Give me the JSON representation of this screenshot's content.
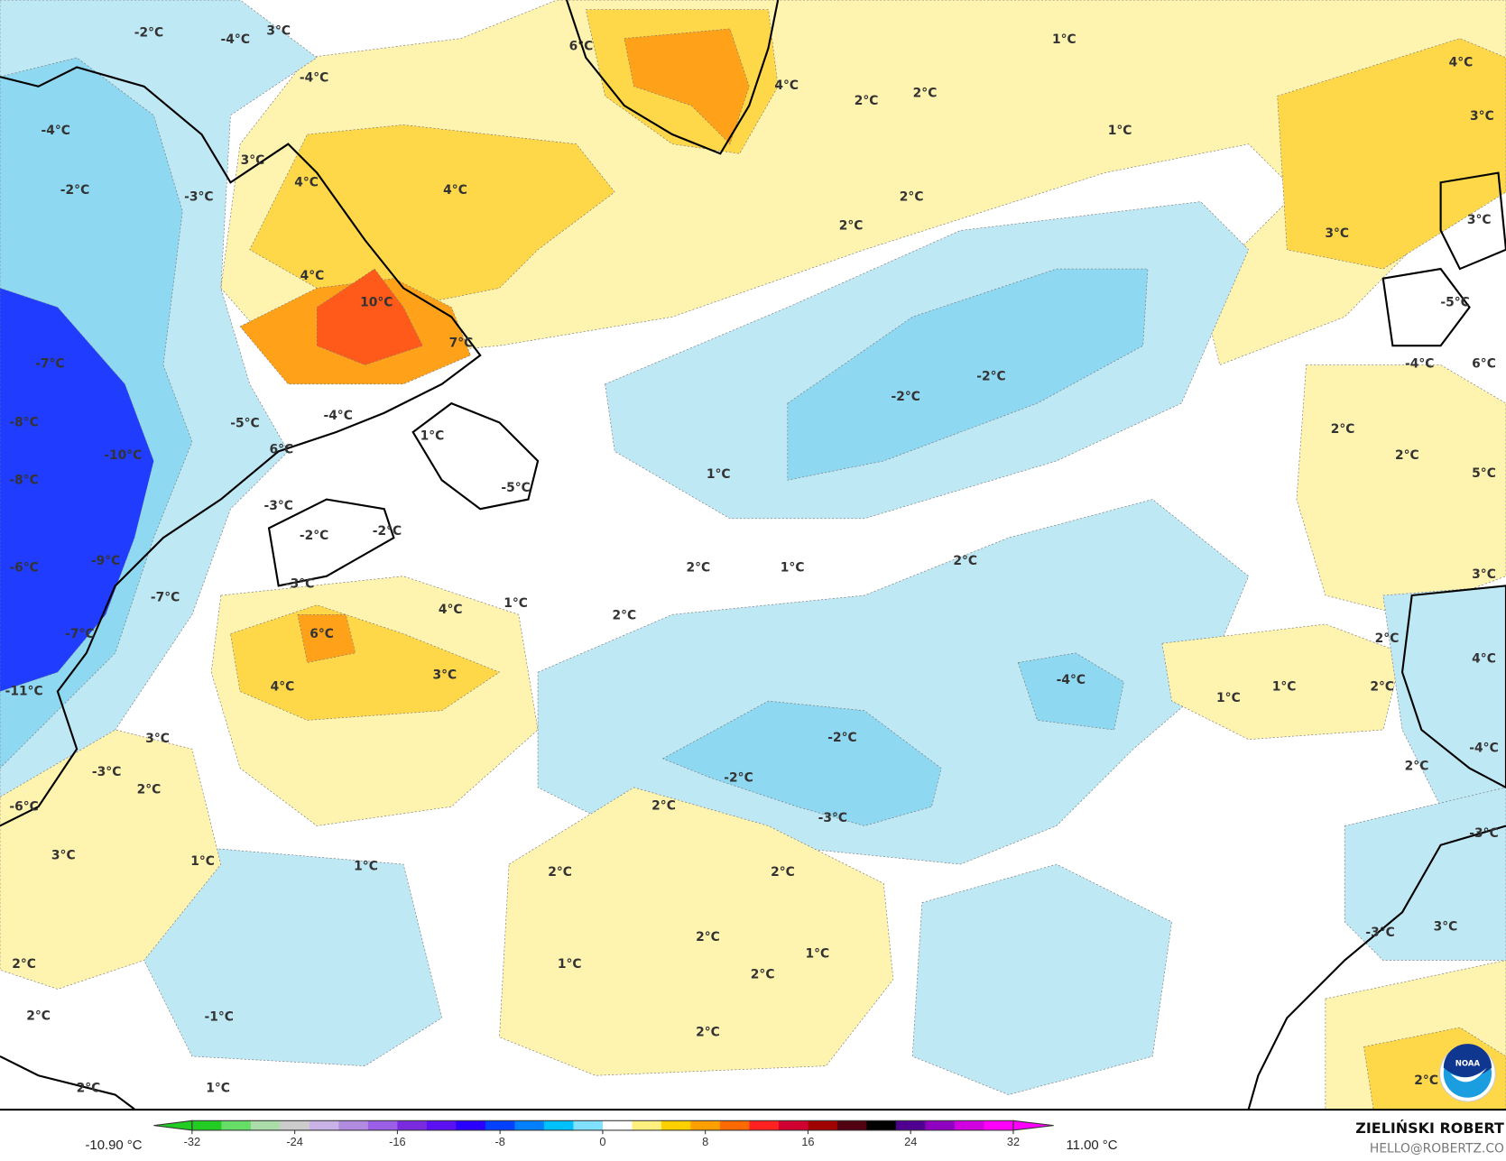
{
  "map": {
    "colors": {
      "light_blue": "#bfe8f5",
      "blue": "#8fd8f2",
      "deep_blue": "#1f3cff",
      "pale_yellow": "#fff3b0",
      "yellow": "#ffd84a",
      "orange": "#ffa21a",
      "red": "#ff5a1a",
      "land_line": "#000000"
    },
    "labels": [
      "-2°C",
      "-4°C",
      "3°C",
      "-4°C",
      "-4°C",
      "-2°C",
      "-3°C",
      "3°C",
      "4°C",
      "-7°C",
      "-8°C",
      "-10°C",
      "-8°C",
      "-6°C",
      "-9°C",
      "-7°C",
      "-7°C",
      "-11°C",
      "-5°C",
      "-4°C",
      "6°C",
      "-3°C",
      "-2°C",
      "-2°C",
      "-3°C",
      "1°C",
      "-5°C",
      "4°C",
      "4°C",
      "10°C",
      "7°C",
      "6°C",
      "4°C",
      "4°C",
      "3°C",
      "1°C",
      "3°C",
      "-3°C",
      "2°C",
      "-6°C",
      "3°C",
      "1°C",
      "1°C",
      "2°C",
      "-1°C",
      "2°C",
      "2°C",
      "1°C",
      "6°C",
      "4°C",
      "2°C",
      "2°C",
      "1°C",
      "2°C",
      "2°C",
      "1°C",
      "-2°C",
      "-2°C",
      "1°C",
      "2°C",
      "1°C",
      "2°C",
      "-2°C",
      "-2°C",
      "-3°C",
      "-4°C",
      "2°C",
      "2°C",
      "2°C",
      "1°C",
      "2°C",
      "2°C",
      "2°C",
      "1°C",
      "3°C",
      "4°C",
      "3°C",
      "3°C",
      "-5°C",
      "6°C",
      "-4°C",
      "2°C",
      "2°C",
      "5°C",
      "3°C",
      "2°C",
      "2°C",
      "1°C",
      "1°C",
      "2°C",
      "2°C",
      "4°C",
      "-4°C",
      "-3°C",
      "-3°C",
      "3°C",
      "2°C"
    ],
    "logo_text": "NOAA"
  },
  "colorbar": {
    "min_label": "-10.90 °C",
    "max_label": "11.00 °C",
    "ticks": [
      "-32",
      "-24",
      "-16",
      "-8",
      "0",
      "8",
      "16",
      "24",
      "32"
    ],
    "stops": [
      "#22cc22",
      "#66dd66",
      "#aaddaa",
      "#cccccc",
      "#c9b3e6",
      "#b08be0",
      "#9a5fe6",
      "#7a2be0",
      "#5a10f0",
      "#2a00ff",
      "#0040ff",
      "#0080ff",
      "#00c0ff",
      "#80e0ff",
      "#ffffff",
      "#fff080",
      "#ffd000",
      "#ffa000",
      "#ff6a00",
      "#ff2020",
      "#d00030",
      "#a00000",
      "#500010",
      "#000000",
      "#500090",
      "#9000c0",
      "#d000e0",
      "#ff00ff"
    ]
  },
  "credit": {
    "name": "ZIELIŃSKI ROBERT",
    "email": "HELLO@ROBERTZ.CO"
  }
}
